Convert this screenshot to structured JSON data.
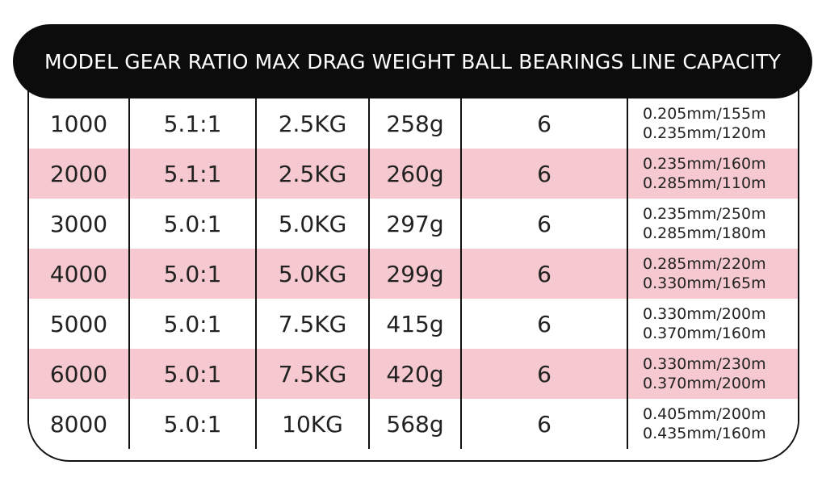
{
  "header": {
    "columns": [
      "MODEL",
      "GEAR RATIO",
      "MAX DRAG",
      "WEIGHT",
      "BALL BEARINGS",
      "LINE CAPACITY"
    ]
  },
  "rows": [
    {
      "model": "1000",
      "gear_ratio": "5.1:1",
      "max_drag": "2.5KG",
      "weight": "258g",
      "ball_bearings": "6",
      "line_capacity": [
        "0.205mm/155m",
        "0.235mm/120m"
      ]
    },
    {
      "model": "2000",
      "gear_ratio": "5.1:1",
      "max_drag": "2.5KG",
      "weight": "260g",
      "ball_bearings": "6",
      "line_capacity": [
        "0.235mm/160m",
        "0.285mm/110m"
      ]
    },
    {
      "model": "3000",
      "gear_ratio": "5.0:1",
      "max_drag": "5.0KG",
      "weight": "297g",
      "ball_bearings": "6",
      "line_capacity": [
        "0.235mm/250m",
        "0.285mm/180m"
      ]
    },
    {
      "model": "4000",
      "gear_ratio": "5.0:1",
      "max_drag": "5.0KG",
      "weight": "299g",
      "ball_bearings": "6",
      "line_capacity": [
        "0.285mm/220m",
        "0.330mm/165m"
      ]
    },
    {
      "model": "5000",
      "gear_ratio": "5.0:1",
      "max_drag": "7.5KG",
      "weight": "415g",
      "ball_bearings": "6",
      "line_capacity": [
        "0.330mm/200m",
        "0.370mm/160m"
      ]
    },
    {
      "model": "6000",
      "gear_ratio": "5.0:1",
      "max_drag": "7.5KG",
      "weight": "420g",
      "ball_bearings": "6",
      "line_capacity": [
        "0.330mm/230m",
        "0.370mm/200m"
      ]
    },
    {
      "model": "8000",
      "gear_ratio": "5.0:1",
      "max_drag": "10KG",
      "weight": "568g",
      "ball_bearings": "6",
      "line_capacity": [
        "0.405mm/200m",
        "0.435mm/160m"
      ]
    }
  ],
  "colors": {
    "header_bg": "#0c0c0c",
    "pink_row": "#f5c9cf",
    "white_row": "#ffffff"
  }
}
